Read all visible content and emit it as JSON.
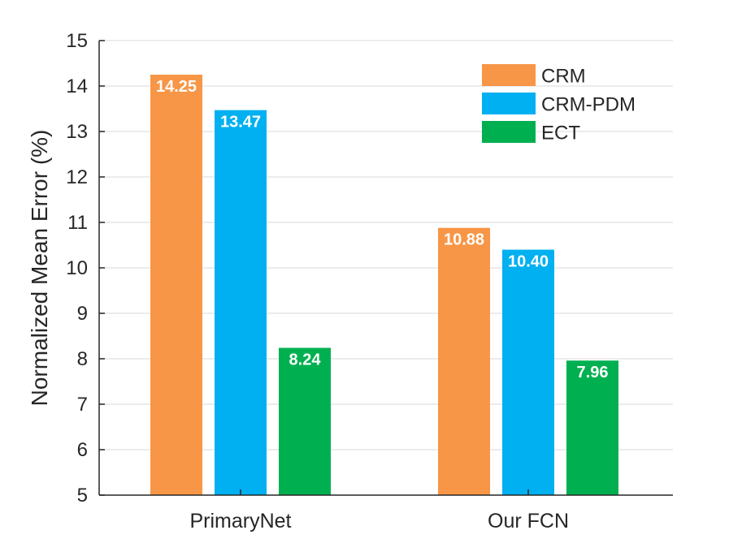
{
  "chart_data": {
    "type": "bar",
    "title": "",
    "xlabel": "",
    "ylabel": "Normalized Mean Error (%)",
    "ylim": [
      5,
      15
    ],
    "yticks": [
      5,
      6,
      7,
      8,
      9,
      10,
      11,
      12,
      13,
      14,
      15
    ],
    "grid": true,
    "legend_position": "top-right",
    "categories": [
      "PrimaryNet",
      "Our FCN"
    ],
    "series": [
      {
        "name": "CRM",
        "color": "#f79646",
        "values": [
          14.25,
          10.88
        ],
        "labels": [
          "14.25",
          "10.88"
        ]
      },
      {
        "name": "CRM-PDM",
        "color": "#00b0f0",
        "values": [
          13.47,
          10.4
        ],
        "labels": [
          "13.47",
          "10.40"
        ]
      },
      {
        "name": "ECT",
        "color": "#00b050",
        "values": [
          8.24,
          7.96
        ],
        "labels": [
          "8.24",
          "7.96"
        ]
      }
    ]
  }
}
